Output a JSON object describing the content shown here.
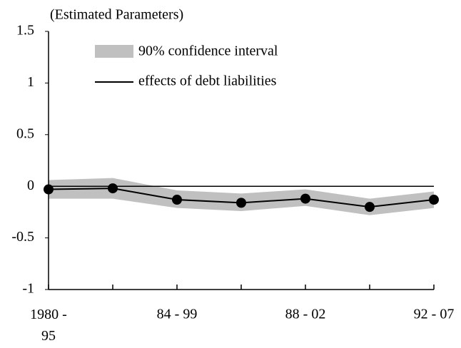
{
  "chart_data": {
    "type": "line",
    "title": "(Estimated Parameters)",
    "categories": [
      "1980 - 95",
      null,
      "84 - 99",
      null,
      "88 - 02",
      null,
      "92 - 07"
    ],
    "series": [
      {
        "name": "90% confidence interval",
        "color": "#c0c0c0",
        "upper": [
          0.06,
          0.08,
          -0.04,
          -0.07,
          -0.03,
          -0.12,
          -0.05
        ],
        "lower": [
          -0.12,
          -0.12,
          -0.21,
          -0.24,
          -0.19,
          -0.28,
          -0.21
        ]
      },
      {
        "name": "effects of debt liabilities",
        "color": "#000000",
        "values": [
          -0.03,
          -0.02,
          -0.13,
          -0.16,
          -0.12,
          -0.2,
          -0.13
        ]
      }
    ],
    "ylim": [
      -1,
      1.5
    ],
    "yticks": [
      -1,
      -0.5,
      0,
      0.5,
      1,
      1.5
    ]
  }
}
